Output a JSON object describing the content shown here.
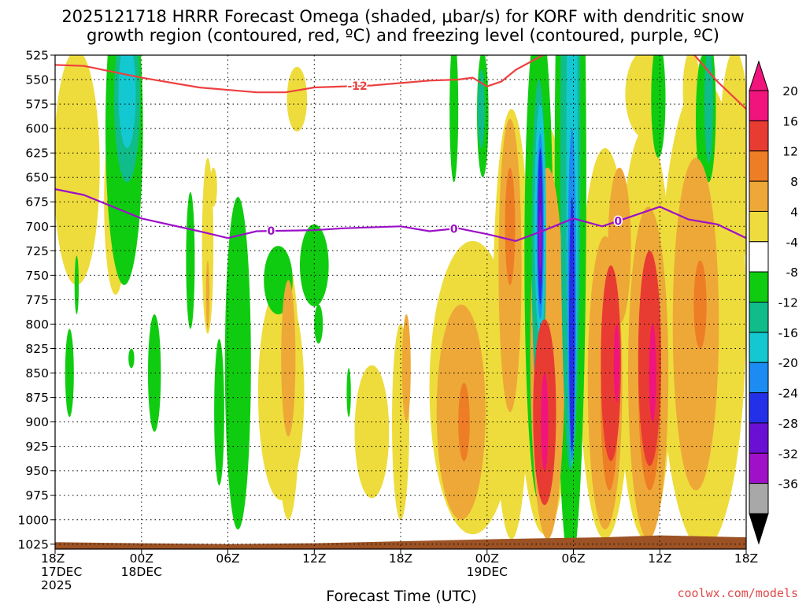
{
  "chart_data": {
    "type": "heatmap",
    "title_line1": "2025121718 HRRR Forecast Omega (shaded, μbar/s) for KORF with dendritic snow",
    "title_line2": "growth region (contoured, red, ºC) and freezing level (contoured, purple, ºC)",
    "xlabel": "Forecast Time (UTC)",
    "ylabel": "",
    "credit": "coolwx.com/models",
    "y_axis": {
      "unit": "hPa",
      "range": [
        525,
        1030
      ],
      "ticks": [
        525,
        550,
        575,
        600,
        625,
        650,
        675,
        700,
        725,
        750,
        775,
        800,
        825,
        850,
        875,
        900,
        925,
        950,
        975,
        1000,
        1025
      ]
    },
    "x_axis": {
      "unit": "forecast hour",
      "range": [
        0,
        48
      ],
      "ticks": [
        {
          "hour": 0,
          "lines": [
            "18Z",
            "17DEC",
            "2025"
          ]
        },
        {
          "hour": 6,
          "lines": [
            "00Z",
            "18DEC"
          ]
        },
        {
          "hour": 12,
          "lines": [
            "06Z"
          ]
        },
        {
          "hour": 18,
          "lines": [
            "12Z"
          ]
        },
        {
          "hour": 24,
          "lines": [
            "18Z"
          ]
        },
        {
          "hour": 30,
          "lines": [
            "00Z",
            "19DEC"
          ]
        },
        {
          "hour": 36,
          "lines": [
            "06Z"
          ]
        },
        {
          "hour": 42,
          "lines": [
            "12Z"
          ]
        },
        {
          "hour": 48,
          "lines": [
            "18Z"
          ]
        }
      ]
    },
    "colorbar": {
      "labels": [
        "20",
        "16",
        "12",
        "8",
        "4",
        "-4",
        "-8",
        "-12",
        "-16",
        "-20",
        "-24",
        "-28",
        "-32",
        "-36"
      ],
      "bins": [
        {
          "color": "#f0147c"
        },
        {
          "color": "#e83c32"
        },
        {
          "color": "#ee7e26"
        },
        {
          "color": "#eea838"
        },
        {
          "color": "#eedc3c"
        },
        {
          "color": "#ffffff"
        },
        {
          "color": "#10cc10"
        },
        {
          "color": "#10bc8a"
        },
        {
          "color": "#14c8d2"
        },
        {
          "color": "#1c8cf2"
        },
        {
          "color": "#2430e8"
        },
        {
          "color": "#6a10d4"
        },
        {
          "color": "#a010c8"
        },
        {
          "color": "#a8a8a8"
        }
      ],
      "top_arrow_color": "#f0147c",
      "bottom_arrow_color": "#000000"
    },
    "omega_regions": [
      {
        "level": 4,
        "hour": 1.5,
        "p": 640,
        "hw": 1.6,
        "hp": 120
      },
      {
        "level": 4,
        "hour": 4.2,
        "p": 675,
        "hw": 0.8,
        "hp": 95
      },
      {
        "level": 4,
        "hour": 16.8,
        "p": 570,
        "hw": 0.7,
        "hp": 33
      },
      {
        "level": 4,
        "hour": 11.0,
        "p": 660,
        "hw": 0.25,
        "hp": 20
      },
      {
        "level": 4,
        "hour": 10.6,
        "p": 720,
        "hw": 0.4,
        "hp": 90
      },
      {
        "level": 4,
        "hour": 15.7,
        "p": 870,
        "hw": 1.6,
        "hp": 110
      },
      {
        "level": 4,
        "hour": 16.2,
        "p": 870,
        "hw": 0.8,
        "hp": 130
      },
      {
        "level": 4,
        "hour": 22.0,
        "p": 910,
        "hw": 1.2,
        "hp": 68
      },
      {
        "level": 4,
        "hour": 24.0,
        "p": 900,
        "hw": 0.6,
        "hp": 100
      },
      {
        "level": 4,
        "hour": 29.0,
        "p": 865,
        "hw": 3.0,
        "hp": 150
      },
      {
        "level": 4,
        "hour": 31.7,
        "p": 800,
        "hw": 1.3,
        "hp": 220
      },
      {
        "level": 4,
        "hour": 34.0,
        "p": 805,
        "hw": 1.9,
        "hp": 210
      },
      {
        "level": 4,
        "hour": 38.2,
        "p": 820,
        "hw": 1.8,
        "hp": 200
      },
      {
        "level": 4,
        "hour": 41.0,
        "p": 810,
        "hw": 1.9,
        "hp": 210
      },
      {
        "level": 4,
        "hour": 45.0,
        "p": 790,
        "hw": 3.0,
        "hp": 240
      },
      {
        "level": 4,
        "hour": 47.2,
        "p": 640,
        "hw": 1.1,
        "hp": 120
      },
      {
        "level": 4,
        "hour": 41.0,
        "p": 565,
        "hw": 1.4,
        "hp": 45
      },
      {
        "level": 4,
        "hour": 44.2,
        "p": 560,
        "hw": 0.6,
        "hp": 40
      },
      {
        "level": 8,
        "hour": 10.6,
        "p": 770,
        "hw": 0.12,
        "hp": 35
      },
      {
        "level": 8,
        "hour": 16.2,
        "p": 835,
        "hw": 0.5,
        "hp": 80
      },
      {
        "level": 8,
        "hour": 24.4,
        "p": 845,
        "hw": 0.3,
        "hp": 55
      },
      {
        "level": 8,
        "hour": 28.2,
        "p": 890,
        "hw": 1.7,
        "hp": 110
      },
      {
        "level": 8,
        "hour": 31.6,
        "p": 740,
        "hw": 0.8,
        "hp": 150
      },
      {
        "level": 8,
        "hour": 34.2,
        "p": 830,
        "hw": 1.2,
        "hp": 190
      },
      {
        "level": 8,
        "hour": 38.2,
        "p": 860,
        "hw": 1.2,
        "hp": 150
      },
      {
        "level": 8,
        "hour": 41.2,
        "p": 850,
        "hw": 1.4,
        "hp": 170
      },
      {
        "level": 8,
        "hour": 44.5,
        "p": 800,
        "hw": 1.6,
        "hp": 170
      },
      {
        "level": 8,
        "hour": 39.2,
        "p": 720,
        "hw": 0.8,
        "hp": 80
      },
      {
        "level": 12,
        "hour": 31.6,
        "p": 700,
        "hw": 0.35,
        "hp": 60
      },
      {
        "level": 12,
        "hour": 44.8,
        "p": 780,
        "hw": 0.45,
        "hp": 45
      },
      {
        "level": 12,
        "hour": 28.4,
        "p": 900,
        "hw": 0.4,
        "hp": 40
      },
      {
        "level": 12,
        "hour": 38.5,
        "p": 880,
        "hw": 0.6,
        "hp": 90
      },
      {
        "level": 12,
        "hour": 41.3,
        "p": 860,
        "hw": 0.8,
        "hp": 110
      },
      {
        "level": 16,
        "hour": 34.0,
        "p": 890,
        "hw": 0.8,
        "hp": 95
      },
      {
        "level": 16,
        "hour": 38.6,
        "p": 840,
        "hw": 0.7,
        "hp": 100
      },
      {
        "level": 16,
        "hour": 41.3,
        "p": 835,
        "hw": 0.8,
        "hp": 110
      },
      {
        "level": 20,
        "hour": 34.0,
        "p": 895,
        "hw": 0.5,
        "hp": 80
      },
      {
        "level": 20,
        "hour": 38.8,
        "p": 840,
        "hw": 0.45,
        "hp": 75
      },
      {
        "level": 20,
        "hour": 41.4,
        "p": 850,
        "hw": 0.5,
        "hp": 85
      },
      {
        "level": 24,
        "hour": 34.0,
        "p": 900,
        "hw": 0.25,
        "hp": 50
      },
      {
        "level": 24,
        "hour": 39.0,
        "p": 840,
        "hw": 0.2,
        "hp": 40
      },
      {
        "level": 24,
        "hour": 41.5,
        "p": 850,
        "hw": 0.25,
        "hp": 50
      },
      {
        "level": -4,
        "hour": 4.8,
        "p": 600,
        "hw": 1.3,
        "hp": 160
      },
      {
        "level": -4,
        "hour": 9.4,
        "p": 735,
        "hw": 0.3,
        "hp": 70
      },
      {
        "level": -4,
        "hour": 12.7,
        "p": 840,
        "hw": 0.9,
        "hp": 170
      },
      {
        "level": -4,
        "hour": 15.5,
        "p": 755,
        "hw": 1.0,
        "hp": 35
      },
      {
        "level": -4,
        "hour": 11.4,
        "p": 890,
        "hw": 0.35,
        "hp": 75
      },
      {
        "level": -4,
        "hour": 1.0,
        "p": 850,
        "hw": 0.3,
        "hp": 45
      },
      {
        "level": -4,
        "hour": 6.9,
        "p": 850,
        "hw": 0.45,
        "hp": 60
      },
      {
        "level": -4,
        "hour": 5.3,
        "p": 835,
        "hw": 0.2,
        "hp": 10
      },
      {
        "level": -4,
        "hour": 20.4,
        "p": 870,
        "hw": 0.15,
        "hp": 25
      },
      {
        "level": -4,
        "hour": 18.0,
        "p": 740,
        "hw": 1.0,
        "hp": 42
      },
      {
        "level": -4,
        "hour": 18.3,
        "p": 800,
        "hw": 0.3,
        "hp": 20
      },
      {
        "level": -4,
        "hour": 27.7,
        "p": 580,
        "hw": 0.3,
        "hp": 75
      },
      {
        "level": -4,
        "hour": 29.7,
        "p": 585,
        "hw": 0.4,
        "hp": 65
      },
      {
        "level": -4,
        "hour": 33.6,
        "p": 730,
        "hw": 1.0,
        "hp": 250
      },
      {
        "level": -4,
        "hour": 35.8,
        "p": 650,
        "hw": 1.1,
        "hp": 400
      },
      {
        "level": -4,
        "hour": 41.9,
        "p": 570,
        "hw": 0.5,
        "hp": 60
      },
      {
        "level": -4,
        "hour": 45.4,
        "p": 580,
        "hw": 0.5,
        "hp": 75
      },
      {
        "level": -4,
        "hour": 41.9,
        "p": 950,
        "hw": 0.35,
        "hp": 22
      },
      {
        "level": -4,
        "hour": 40.8,
        "p": 755,
        "hw": 0.25,
        "hp": 40
      },
      {
        "level": -4,
        "hour": 45.0,
        "p": 590,
        "hw": 0.5,
        "hp": 65
      },
      {
        "level": -4,
        "hour": 1.5,
        "p": 760,
        "hw": 0.15,
        "hp": 30
      },
      {
        "level": -8,
        "hour": 5.0,
        "p": 570,
        "hw": 0.9,
        "hp": 85
      },
      {
        "level": -8,
        "hour": 35.8,
        "p": 620,
        "hw": 0.7,
        "hp": 330
      },
      {
        "level": -8,
        "hour": 33.6,
        "p": 720,
        "hw": 0.5,
        "hp": 170
      },
      {
        "level": -8,
        "hour": 45.4,
        "p": 575,
        "hw": 0.3,
        "hp": 60
      },
      {
        "level": -8,
        "hour": 29.6,
        "p": 580,
        "hw": 0.25,
        "hp": 40
      },
      {
        "level": -12,
        "hour": 5.0,
        "p": 565,
        "hw": 0.6,
        "hp": 55
      },
      {
        "level": -12,
        "hour": 35.9,
        "p": 645,
        "hw": 0.4,
        "hp": 300
      },
      {
        "level": -12,
        "hour": 33.7,
        "p": 695,
        "hw": 0.4,
        "hp": 120
      },
      {
        "level": -16,
        "hour": 35.9,
        "p": 770,
        "hw": 0.3,
        "hp": 170
      },
      {
        "level": -16,
        "hour": 33.7,
        "p": 700,
        "hw": 0.25,
        "hp": 95
      },
      {
        "level": -20,
        "hour": 35.9,
        "p": 800,
        "hw": 0.2,
        "hp": 130
      },
      {
        "level": -20,
        "hour": 33.7,
        "p": 700,
        "hw": 0.18,
        "hp": 80
      },
      {
        "level": -24,
        "hour": 33.7,
        "p": 705,
        "hw": 0.12,
        "hp": 55
      },
      {
        "level": -28,
        "hour": 33.7,
        "p": 715,
        "hw": 0.08,
        "hp": 30
      }
    ],
    "dendritic_isotherm": {
      "label": "-12",
      "color": "#ee4040",
      "label_hour": 21.0,
      "points": [
        [
          0,
          535
        ],
        [
          2,
          536
        ],
        [
          6,
          548
        ],
        [
          10,
          558
        ],
        [
          14,
          563
        ],
        [
          16,
          563
        ],
        [
          18,
          558
        ],
        [
          22,
          556
        ],
        [
          26,
          551
        ],
        [
          28,
          550
        ],
        [
          29,
          548
        ],
        [
          30,
          557
        ],
        [
          31,
          552
        ],
        [
          32,
          540
        ],
        [
          34,
          524
        ],
        [
          36,
          521
        ],
        [
          40,
          520
        ],
        [
          44,
          518
        ],
        [
          46,
          552
        ],
        [
          48,
          580
        ]
      ]
    },
    "freezing_level": {
      "label": "0",
      "color": "#9c10c8",
      "label_hours": [
        15.0,
        27.7,
        39.1
      ],
      "points": [
        [
          0,
          662
        ],
        [
          2,
          668
        ],
        [
          6,
          692
        ],
        [
          10,
          705
        ],
        [
          12,
          712
        ],
        [
          14,
          705
        ],
        [
          18,
          704
        ],
        [
          20,
          702
        ],
        [
          24,
          700
        ],
        [
          26,
          705
        ],
        [
          28,
          702
        ],
        [
          30,
          708
        ],
        [
          32,
          715
        ],
        [
          34,
          704
        ],
        [
          36,
          692
        ],
        [
          38,
          700
        ],
        [
          40,
          690
        ],
        [
          42,
          680
        ],
        [
          44,
          693
        ],
        [
          46,
          698
        ],
        [
          48,
          712
        ]
      ]
    }
  }
}
